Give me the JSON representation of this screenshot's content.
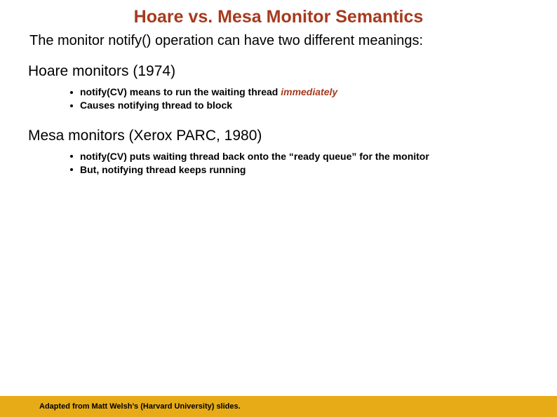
{
  "colors": {
    "title": "#a63a1e",
    "highlight": "#a63a1e",
    "body": "#000000",
    "footer_bg": "#e6ab17",
    "footer_text": "#000000",
    "background": "#ffffff"
  },
  "typography": {
    "title_fontsize": 25,
    "subtitle_fontsize": 20,
    "heading_fontsize": 21,
    "bullet_fontsize": 14,
    "footer_fontsize": 11
  },
  "title": "Hoare vs. Mesa Monitor Semantics",
  "subtitle": "The monitor notify() operation can have two different meanings:",
  "sections": [
    {
      "heading": "Hoare monitors (1974)",
      "bullets": [
        {
          "pre": "notify(CV) means to run the waiting thread ",
          "highlight": "immediately",
          "post": ""
        },
        {
          "pre": "Causes notifying thread to block",
          "highlight": "",
          "post": ""
        }
      ]
    },
    {
      "heading": "Mesa monitors (Xerox PARC, 1980)",
      "bullets": [
        {
          "pre": "notify(CV) puts waiting thread back onto the “ready queue” for the monitor",
          "highlight": "",
          "post": ""
        },
        {
          "pre": "But, notifying thread keeps running",
          "highlight": "",
          "post": ""
        }
      ]
    }
  ],
  "footer": "Adapted from Matt Welsh’s (Harvard University) slides."
}
